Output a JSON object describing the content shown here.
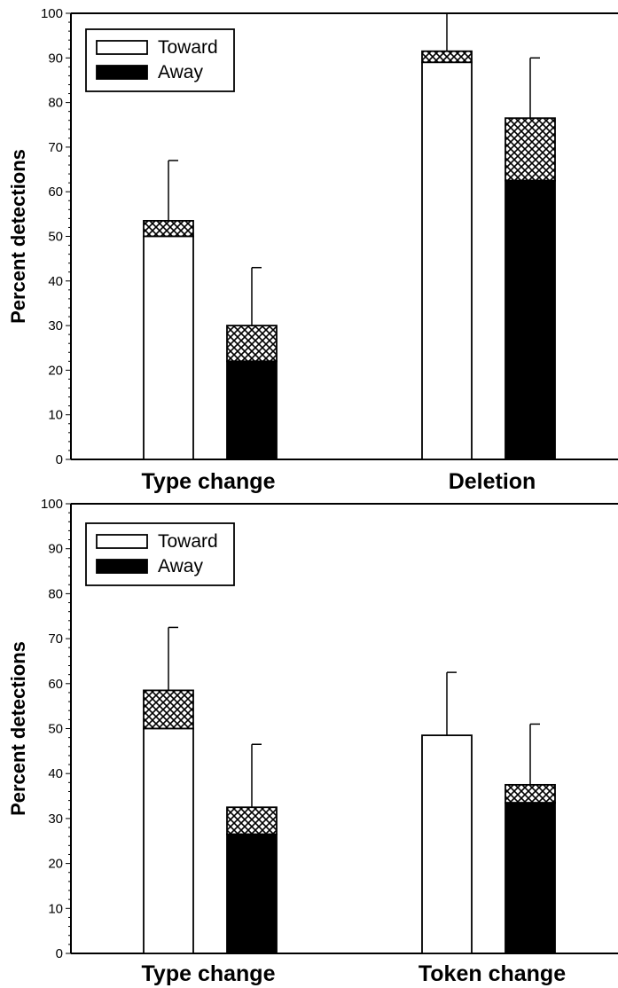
{
  "chart_data": [
    {
      "type": "bar",
      "stacked_segments": true,
      "ylabel": "Percent detections",
      "ylim": [
        0,
        100
      ],
      "yticks": [
        0,
        10,
        20,
        30,
        40,
        50,
        60,
        70,
        80,
        90,
        100
      ],
      "categories": [
        "Type change",
        "Deletion"
      ],
      "legend": {
        "placement": "top-left",
        "entries": [
          "Toward",
          "Away"
        ]
      },
      "series": [
        {
          "name": "Toward",
          "fill": "#ffffff",
          "base": [
            50,
            89
          ],
          "total": [
            53.5,
            91.5
          ],
          "error_top": [
            67,
            100
          ]
        },
        {
          "name": "Away",
          "fill": "#000000",
          "base": [
            22,
            62.5
          ],
          "total": [
            30,
            76.5
          ],
          "error_top": [
            43,
            90
          ]
        }
      ]
    },
    {
      "type": "bar",
      "stacked_segments": true,
      "ylabel": "Percent detections",
      "ylim": [
        0,
        100
      ],
      "yticks": [
        0,
        10,
        20,
        30,
        40,
        50,
        60,
        70,
        80,
        90,
        100
      ],
      "categories": [
        "Type change",
        "Token change"
      ],
      "legend": {
        "placement": "top-left",
        "entries": [
          "Toward",
          "Away"
        ]
      },
      "series": [
        {
          "name": "Toward",
          "fill": "#ffffff",
          "base": [
            50,
            48.5
          ],
          "total": [
            58.5,
            48.5
          ],
          "error_top": [
            72.5,
            62.5
          ]
        },
        {
          "name": "Away",
          "fill": "#000000",
          "base": [
            26.5,
            33.5
          ],
          "total": [
            32.5,
            37.5
          ],
          "error_top": [
            46.5,
            51
          ]
        }
      ]
    }
  ]
}
